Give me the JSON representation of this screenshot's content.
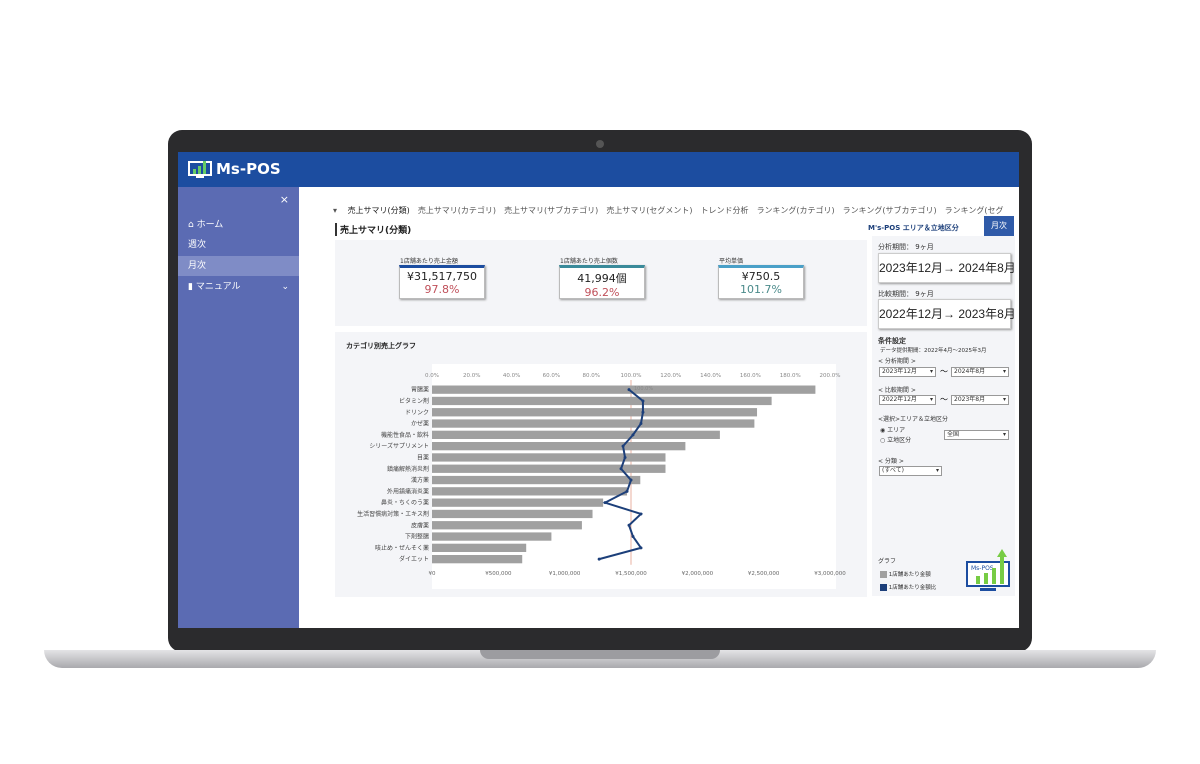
{
  "app": {
    "name": "Ms-POS"
  },
  "sidebar": {
    "close": "×",
    "items": [
      {
        "label": "ホーム",
        "icon": "home-icon"
      },
      {
        "label": "週次"
      },
      {
        "label": "月次",
        "active": true
      },
      {
        "label": "マニュアル",
        "icon": "document-icon"
      }
    ]
  },
  "tabs": [
    "売上サマリ(分類)",
    "売上サマリ(カテゴリ)",
    "売上サマリ(サブカテゴリ)",
    "売上サマリ(セグメント)",
    "トレンド分析",
    "ランキング(カテゴリ)",
    "ランキング(サブカテゴリ)",
    "ランキング(セグ"
  ],
  "page": {
    "title": "売上サマリ(分類)",
    "context": "M's-POS エリア＆立地区分",
    "mode_button": "月次"
  },
  "kpis": [
    {
      "label": "1店舗あたり売上金額",
      "value": "¥31,517,750",
      "ratio": "97.8%",
      "ratio_color": "#c0505a"
    },
    {
      "label": "1店舗あたり売上個数",
      "value": "41,994個",
      "ratio": "96.2%",
      "ratio_color": "#c0505a"
    },
    {
      "label": "平均単価",
      "value": "¥750.5",
      "ratio": "101.7%",
      "ratio_color": "#4a8a8a"
    }
  ],
  "right": {
    "analysis_label": "分析期間：",
    "analysis_months": "9ヶ月",
    "analysis_range": "2023年12月→ 2024年8月",
    "compare_label": "比較期間：",
    "compare_months": "9ヶ月",
    "compare_range": "2022年12月→ 2023年8月",
    "conditions": "条件設定",
    "data_period": "データ提供期間：2022年4月～2025年3月",
    "analysis_sel_label": "< 分析期間 >",
    "analysis_from": "2023年12月",
    "analysis_to": "2024年8月",
    "compare_sel_label": "< 比較期間 >",
    "compare_from": "2022年12月",
    "compare_to": "2023年8月",
    "tilde": "～",
    "area_label": "<選択>エリア＆立地区分",
    "radio_area": "エリア",
    "radio_location": "立地区分",
    "area_value": "全国",
    "class_label": "< 分類 >",
    "class_value": "(すべて)",
    "legend_title": "グラフ",
    "legend": [
      {
        "label": "1店舗あたり金額",
        "color": "#a0a0a0"
      },
      {
        "label": "1店舗あたり金額比",
        "color": "#1c3f7a"
      }
    ]
  },
  "chart_data": {
    "type": "bar",
    "title": "カテゴリ別売上グラフ",
    "categories": [
      "胃腸薬",
      "ビタミン剤",
      "ドリンク",
      "かぜ薬",
      "機能性食品・飲料",
      "シリーズサプリメント",
      "目薬",
      "鎮痛解熱消炎剤",
      "漢方薬",
      "外用鎮痛消炎薬",
      "鼻炎・ちくのう薬",
      "生活習慣病対策・エキス剤",
      "皮膚薬",
      "下剤整腸",
      "咳止め・ぜんそく薬",
      "ダイエット"
    ],
    "series": [
      {
        "name": "1店舗あたり金額",
        "type": "bar",
        "color": "#a0a0a0",
        "values": [
          2890000,
          2560000,
          2450000,
          2430000,
          2170000,
          1910000,
          1760000,
          1760000,
          1570000,
          1470000,
          1290000,
          1210000,
          1130000,
          900000,
          710000,
          680000
        ]
      },
      {
        "name": "1店舗あたり金額比",
        "type": "line",
        "color": "#1c3f7a",
        "values": [
          99,
          106,
          106,
          105,
          101,
          96,
          97,
          95,
          100,
          98,
          87,
          105,
          99,
          101,
          105,
          84
        ]
      }
    ],
    "xlim": [
      0,
      3000000
    ],
    "x_ticks": [
      "¥0",
      "¥500,000",
      "¥1,000,000",
      "¥1,500,000",
      "¥2,000,000",
      "¥2,500,000",
      "¥3,000,000"
    ],
    "x2lim": [
      0,
      200
    ],
    "x2_ticks": [
      "0.0%",
      "20.0%",
      "40.0%",
      "60.0%",
      "80.0%",
      "100.0%",
      "120.0%",
      "140.0%",
      "160.0%",
      "180.0%",
      "200.0%"
    ],
    "reference_label": "100.0%"
  }
}
